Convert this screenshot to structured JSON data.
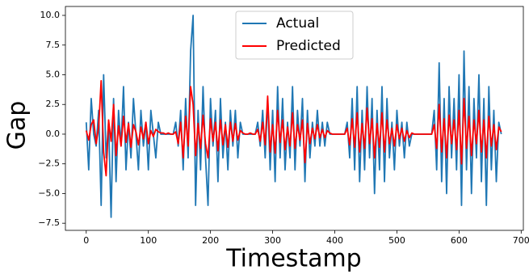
{
  "chart_data": {
    "type": "line",
    "xlabel": "Timestamp",
    "ylabel": "Gap",
    "x": [
      0,
      4,
      8,
      12,
      16,
      20,
      24,
      28,
      32,
      36,
      40,
      44,
      48,
      52,
      56,
      60,
      64,
      68,
      72,
      76,
      80,
      84,
      88,
      92,
      96,
      100,
      104,
      108,
      112,
      116,
      120,
      124,
      128,
      132,
      136,
      140,
      144,
      148,
      152,
      156,
      160,
      164,
      168,
      172,
      176,
      180,
      184,
      188,
      192,
      196,
      200,
      204,
      208,
      212,
      216,
      220,
      224,
      228,
      232,
      236,
      240,
      244,
      248,
      252,
      256,
      260,
      264,
      268,
      272,
      276,
      280,
      284,
      288,
      292,
      296,
      300,
      304,
      308,
      312,
      316,
      320,
      324,
      328,
      332,
      336,
      340,
      344,
      348,
      352,
      356,
      360,
      364,
      368,
      372,
      376,
      380,
      384,
      388,
      392,
      396,
      400,
      404,
      408,
      412,
      416,
      420,
      424,
      428,
      432,
      436,
      440,
      444,
      448,
      452,
      456,
      460,
      464,
      468,
      472,
      476,
      480,
      484,
      488,
      492,
      496,
      500,
      504,
      508,
      512,
      516,
      520,
      524,
      528,
      532,
      536,
      540,
      544,
      548,
      552,
      556,
      560,
      564,
      568,
      572,
      576,
      580,
      584,
      588,
      592,
      596,
      600,
      604,
      608,
      612,
      616,
      620,
      624,
      628,
      632,
      636,
      640,
      644,
      648,
      652,
      656,
      660,
      664,
      668
    ],
    "series": [
      {
        "name": "Actual",
        "color": "#1f77b4",
        "values": [
          1,
          -3,
          3,
          0,
          -1,
          2,
          -6,
          5,
          -2,
          1,
          -7,
          3,
          -4,
          2,
          -1,
          4,
          -3,
          1,
          -2,
          3,
          0,
          -3,
          2,
          -1,
          1,
          -3,
          2,
          0,
          -2,
          1,
          0,
          0,
          0,
          0,
          0,
          0,
          1,
          -1,
          2,
          -3,
          3,
          -2,
          7,
          10,
          -6,
          2,
          -3,
          4,
          -2,
          -6,
          3,
          -1,
          2,
          -4,
          3,
          -2,
          1,
          -3,
          2,
          -1,
          2,
          -2,
          1,
          0,
          0,
          0,
          0,
          0,
          0,
          1,
          -1,
          2,
          -2,
          3,
          -3,
          2,
          -4,
          4,
          -2,
          3,
          -3,
          1,
          -2,
          4,
          -3,
          2,
          -1,
          3,
          -4,
          2,
          -2,
          1,
          -1,
          2,
          -1,
          1,
          -1,
          1,
          0,
          0,
          0,
          0,
          0,
          0,
          0,
          1,
          -2,
          3,
          -3,
          4,
          -4,
          2,
          -3,
          4,
          -2,
          3,
          -5,
          2,
          -3,
          4,
          -4,
          3,
          -2,
          1,
          -3,
          2,
          -1,
          1,
          -2,
          1,
          -1,
          0,
          0,
          0,
          0,
          0,
          0,
          0,
          0,
          0,
          2,
          -3,
          6,
          -4,
          3,
          -5,
          4,
          -2,
          3,
          -3,
          5,
          -6,
          7,
          -3,
          4,
          -5,
          3,
          -2,
          5,
          -4,
          3,
          -6,
          4,
          -3,
          2,
          -4,
          1,
          0
        ]
      },
      {
        "name": "Predicted",
        "color": "#ff0000",
        "values": [
          0.3,
          -0.5,
          0.8,
          1.2,
          -0.8,
          0.6,
          4.5,
          -1.5,
          -3.5,
          1.2,
          -0.6,
          2.5,
          -1.8,
          0.7,
          -1.0,
          1.5,
          -0.7,
          0.9,
          -1.1,
          0.8,
          0.2,
          -0.9,
          0.6,
          -0.4,
          1.0,
          -0.8,
          0.3,
          -0.2,
          0.4,
          0.2,
          0.1,
          0.1,
          0.0,
          0.1,
          0.0,
          0.0,
          0.2,
          -0.8,
          1.0,
          -2.0,
          1.5,
          -1.0,
          4.0,
          2.5,
          -1.8,
          0.9,
          -1.2,
          1.6,
          -0.8,
          -2.0,
          1.3,
          -0.6,
          1.0,
          -1.4,
          1.2,
          -0.9,
          0.8,
          -1.1,
          1.0,
          -0.6,
          0.9,
          -0.5,
          0.3,
          0.1,
          0.0,
          0.0,
          0.1,
          0.0,
          0.0,
          0.4,
          -0.6,
          1.0,
          -0.9,
          3.2,
          -1.5,
          0.8,
          -1.6,
          2.0,
          -0.7,
          1.2,
          -1.3,
          0.6,
          -1.0,
          1.8,
          -1.2,
          0.8,
          -0.5,
          1.2,
          -2.4,
          0.9,
          -0.8,
          0.5,
          -0.4,
          0.8,
          -0.3,
          0.4,
          -0.3,
          0.3,
          0.1,
          0.0,
          0.0,
          0.0,
          0.0,
          0.0,
          0.0,
          0.5,
          -0.9,
          1.3,
          -1.1,
          1.8,
          -1.5,
          0.9,
          -1.2,
          2.2,
          -0.8,
          1.3,
          -2.0,
          0.9,
          -1.1,
          1.8,
          -1.5,
          1.2,
          -0.8,
          0.5,
          -1.0,
          0.8,
          -0.4,
          0.5,
          -0.6,
          0.3,
          -0.3,
          0.1,
          0.0,
          0.0,
          0.0,
          0.0,
          0.0,
          0.0,
          0.0,
          0.0,
          0.8,
          -1.2,
          2.5,
          -1.5,
          1.3,
          -2.0,
          1.6,
          -0.8,
          1.2,
          -1.3,
          2.0,
          -2.5,
          3.0,
          -1.2,
          1.5,
          -1.8,
          1.2,
          -0.8,
          2.0,
          -1.5,
          1.2,
          -2.0,
          1.5,
          -1.0,
          0.8,
          -1.3,
          0.6,
          0.2
        ]
      }
    ],
    "xlim": [
      -33.5,
      703.5
    ],
    "xticks": [
      0,
      100,
      200,
      300,
      400,
      500,
      600,
      700
    ],
    "ylim": [
      -8.1,
      10.75
    ],
    "yticks": [
      {
        "value": 10,
        "label": "10.0"
      },
      {
        "value": 7.5,
        "label": "7.5"
      },
      {
        "value": 5,
        "label": "5.0"
      },
      {
        "value": 2.5,
        "label": "2.5"
      },
      {
        "value": 0,
        "label": "0.0"
      },
      {
        "value": -2.5,
        "label": "−2.5"
      },
      {
        "value": -5,
        "label": "−5.0"
      },
      {
        "value": -7.5,
        "label": "−7.5"
      }
    ],
    "legend": "upper center",
    "grid": false
  }
}
